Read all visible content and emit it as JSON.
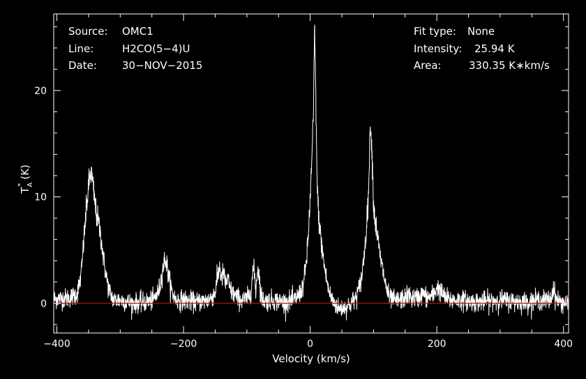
{
  "chart_data": {
    "type": "line",
    "xlabel": "Velocity (km/s)",
    "ylabel": "T_A* (K)",
    "ylabel_parts": {
      "main": "T",
      "sub": "A",
      "sup": "*",
      "unit": "(K)"
    },
    "xlim": [
      -405,
      408
    ],
    "ylim": [
      -2.8,
      27.2
    ],
    "xticks": [
      -400,
      -200,
      0,
      200,
      400
    ],
    "yticks": [
      0,
      10,
      20
    ],
    "baseline": 0,
    "background_color": "#000000",
    "series_color": "#ffffff",
    "baseline_color": "#e00000",
    "info_left": {
      "source_label": "Source:",
      "source_value": "OMC1",
      "line_label": "Line:",
      "line_value": "H2CO(5−4)U",
      "date_label": "Date:",
      "date_value": "30−NOV−2015"
    },
    "info_right": {
      "fit_label": "Fit type:",
      "fit_value": "None",
      "intensity_label": "Intensity:",
      "intensity_value": "25.94 K",
      "area_label": "Area:",
      "area_value": "330.35 K∗km/s"
    },
    "series": [
      {
        "noise_sigma": 0.45,
        "x": [
          -405,
          -380,
          -368,
          -362,
          -358,
          -354,
          -350,
          -347,
          -345,
          -342,
          -338,
          -334,
          -330,
          -326,
          -322,
          -318,
          -314,
          -310,
          -300,
          -280,
          -260,
          -248,
          -240,
          -236,
          -232,
          -229,
          -226,
          -222,
          -218,
          -212,
          -200,
          -180,
          -160,
          -150,
          -146,
          -143,
          -140,
          -137,
          -134,
          -130,
          -126,
          -120,
          -110,
          -100,
          -94,
          -90,
          -88,
          -86,
          -84,
          -82,
          -80,
          -78,
          -75,
          -72,
          -68,
          -60,
          -40,
          -25,
          -15,
          -10,
          -5,
          -2,
          2,
          5,
          7,
          9,
          11,
          13,
          16,
          20,
          25,
          30,
          36,
          45,
          55,
          65,
          72,
          78,
          82,
          86,
          90,
          93,
          95,
          98,
          100,
          103,
          106,
          110,
          115,
          120,
          125,
          135,
          150,
          155,
          160,
          170,
          178,
          185,
          195,
          200,
          205,
          212,
          220,
          240,
          260,
          280,
          300,
          320,
          340,
          360,
          380,
          384,
          388,
          395,
          408
        ],
        "y": [
          0.4,
          0.5,
          0.9,
          2.5,
          5.5,
          8.5,
          11.0,
          12.2,
          12.0,
          10.5,
          8.5,
          7.5,
          6.0,
          4.0,
          2.5,
          1.3,
          0.7,
          0.3,
          0.3,
          0.0,
          0.1,
          0.3,
          1.0,
          2.0,
          3.5,
          4.2,
          3.5,
          2.0,
          1.0,
          0.3,
          0.3,
          0.1,
          0.3,
          1.0,
          2.5,
          3.5,
          2.2,
          3.0,
          1.8,
          2.3,
          1.2,
          0.8,
          0.3,
          0.4,
          1.0,
          3.2,
          2.8,
          1.2,
          2.6,
          3.5,
          2.2,
          0.8,
          0.4,
          0.2,
          0.2,
          0.3,
          0.1,
          0.3,
          1.0,
          2.0,
          4.5,
          7.5,
          12.5,
          17.5,
          25.94,
          19.0,
          11.0,
          8.5,
          6.5,
          4.5,
          2.5,
          1.0,
          0.2,
          -0.5,
          -0.4,
          0.0,
          0.5,
          1.5,
          2.8,
          5.0,
          8.0,
          12.0,
          17.5,
          13.5,
          9.5,
          7.5,
          6.5,
          4.5,
          3.0,
          1.5,
          0.5,
          0.2,
          0.5,
          0.8,
          0.5,
          0.5,
          0.9,
          0.5,
          0.8,
          1.5,
          1.2,
          0.6,
          0.3,
          0.3,
          0.1,
          0.2,
          0.3,
          0.2,
          0.1,
          0.3,
          0.3,
          1.5,
          0.4,
          0.1,
          0.0
        ]
      }
    ]
  }
}
